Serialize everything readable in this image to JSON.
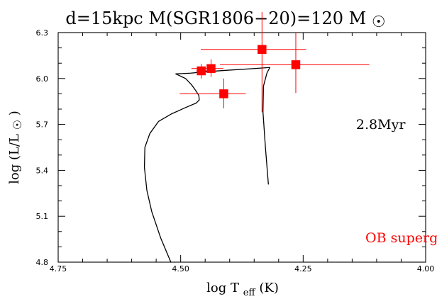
{
  "chart_data": {
    "type": "scatter",
    "title_parts": {
      "prefix": "d=15kpc M(SGR1806−20)=120 M",
      "symbol": "☉"
    },
    "xlabel_parts": {
      "main": "log T",
      "sub": "eff",
      "suffix": " (K)"
    },
    "ylabel_parts": {
      "prefix": "log (L/L",
      "symbol": "☉",
      "suffix": ")"
    },
    "xlim": [
      4.75,
      4.0
    ],
    "ylim": [
      4.8,
      6.3
    ],
    "x_ticks": [
      {
        "value": 4.75,
        "label": "4.75"
      },
      {
        "value": 4.5,
        "label": "4.50"
      },
      {
        "value": 4.25,
        "label": "4.25"
      },
      {
        "value": 4.0,
        "label": "4.00"
      }
    ],
    "y_ticks": [
      {
        "value": 4.8,
        "label": "4.8"
      },
      {
        "value": 5.1,
        "label": "5.1"
      },
      {
        "value": 5.4,
        "label": "5.4"
      },
      {
        "value": 5.7,
        "label": "5.7"
      },
      {
        "value": 6.0,
        "label": "6.0"
      },
      {
        "value": 6.3,
        "label": "6.3"
      }
    ],
    "x_minor_step": 0.05,
    "y_minor_step": 0.1,
    "annotations": [
      {
        "text": "2.8Myr",
        "x": 4.142,
        "y": 5.67,
        "color": "#000000"
      },
      {
        "text": "OB supergiants",
        "x": 4.123,
        "y": 4.93,
        "color": "#ff0000"
      }
    ],
    "series": [
      {
        "type": "scatter",
        "color": "#ff0000",
        "points": [
          {
            "x": 4.458,
            "y": 6.05,
            "xerr": [
              0.01,
              0.012
            ],
            "yerr": [
              0.05,
              0.045
            ]
          },
          {
            "x": 4.438,
            "y": 6.065,
            "xerr": [
              0.04,
              0.025
            ],
            "yerr": [
              0.055,
              0.06
            ]
          },
          {
            "x": 4.412,
            "y": 5.9,
            "xerr": [
              0.09,
              0.045
            ],
            "yerr": [
              0.095,
              0.1
            ]
          },
          {
            "x": 4.334,
            "y": 6.19,
            "xerr": [
              0.125,
              0.09
            ],
            "yerr": [
              0.41,
              0.245
            ]
          },
          {
            "x": 4.265,
            "y": 6.09,
            "xerr": [
              0.155,
              0.15
            ],
            "yerr": [
              0.185,
              0.21
            ]
          }
        ]
      },
      {
        "type": "line",
        "color": "#000000",
        "points": [
          [
            4.52,
            4.8
          ],
          [
            4.541,
            4.96
          ],
          [
            4.559,
            5.13
          ],
          [
            4.569,
            5.27
          ],
          [
            4.574,
            5.42
          ],
          [
            4.573,
            5.55
          ],
          [
            4.563,
            5.64
          ],
          [
            4.545,
            5.72
          ],
          [
            4.518,
            5.77
          ],
          [
            4.49,
            5.81
          ],
          [
            4.468,
            5.84
          ],
          [
            4.462,
            5.86
          ],
          [
            4.463,
            5.89
          ],
          [
            4.469,
            5.92
          ],
          [
            4.478,
            5.96
          ],
          [
            4.49,
            6.0
          ],
          [
            4.51,
            6.03
          ],
          [
            4.48,
            6.035
          ],
          [
            4.445,
            6.045
          ],
          [
            4.4,
            6.055
          ],
          [
            4.35,
            6.065
          ],
          [
            4.318,
            6.072
          ],
          [
            4.324,
            6.035
          ],
          [
            4.331,
            5.95
          ],
          [
            4.332,
            5.78
          ],
          [
            4.327,
            5.55
          ],
          [
            4.321,
            5.31
          ]
        ]
      }
    ]
  }
}
